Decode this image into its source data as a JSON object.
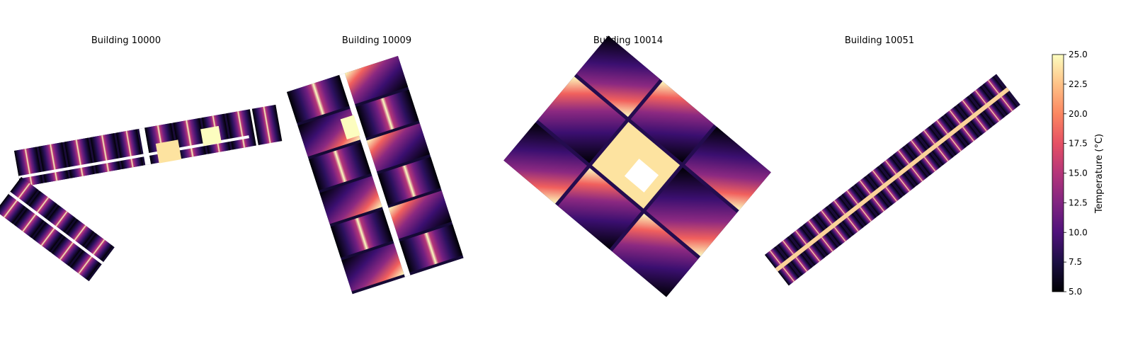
{
  "chart_data": {
    "type": "heatmap",
    "colormap": "magma",
    "panels": [
      {
        "title": "Building 10000"
      },
      {
        "title": "Building 10009"
      },
      {
        "title": "Building 10014"
      },
      {
        "title": "Building 10051"
      }
    ],
    "colorbar": {
      "label": "Temperature (°C)",
      "vmin": 5.0,
      "vmax": 25.0,
      "ticks": [
        "5.0",
        "7.5",
        "10.0",
        "12.5",
        "15.0",
        "17.5",
        "20.0",
        "22.5",
        "25.0"
      ]
    }
  }
}
